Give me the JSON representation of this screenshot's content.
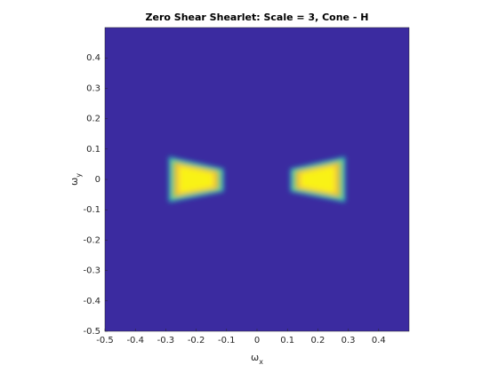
{
  "chart_data": {
    "type": "image",
    "title": "Zero Shear Shearlet: Scale = 3, Cone - H",
    "xlabel": "ω",
    "xlabel_sub": "x",
    "ylabel": "ω",
    "ylabel_sub": "y",
    "xlim": [
      -0.5,
      0.5
    ],
    "ylim": [
      -0.5,
      0.5
    ],
    "xticks": [
      -0.5,
      -0.4,
      -0.3,
      -0.2,
      -0.1,
      0,
      0.1,
      0.2,
      0.3,
      0.4
    ],
    "yticks": [
      -0.5,
      -0.4,
      -0.3,
      -0.2,
      -0.1,
      0,
      0.1,
      0.2,
      0.3,
      0.4
    ],
    "background": "#3b2ba0",
    "colors": [
      "#28c2b8",
      "#9cc84a",
      "#f5be3e",
      "#f9f214"
    ],
    "regions": [
      {
        "x": [
          -0.29,
          -0.11,
          -0.11,
          -0.29
        ],
        "y": [
          0.075,
          0.035,
          -0.04,
          -0.075
        ]
      },
      {
        "x": [
          0.11,
          0.29,
          0.29,
          0.11
        ],
        "y": [
          0.035,
          0.075,
          -0.075,
          -0.04
        ]
      }
    ]
  }
}
